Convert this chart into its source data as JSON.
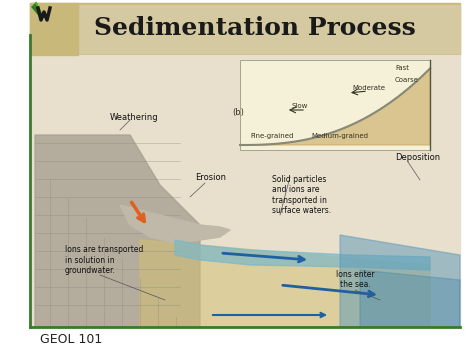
{
  "title": "Sedimentation Process",
  "footer": "GEOL 101",
  "bg_color": "#ffffff",
  "header_bg": "#d4c9a0",
  "header_left_bg": "#c8b87a",
  "border_color": "#4a7a3a",
  "title_color": "#1a1a1a",
  "title_fontsize": 18,
  "footer_fontsize": 9,
  "annotations": [
    "Weathering",
    "Erosion",
    "Solid particles\nand ions are\ntransported in\nsurface waters.",
    "Deposition",
    "Ions are transported\nin solution in\ngroundwater.",
    "Ions enter\nthe sea."
  ],
  "inset_labels": [
    "Slow",
    "Moderate",
    "Fast",
    "Fine-grained",
    "Medium-grained",
    "Coarse",
    "(b)"
  ]
}
